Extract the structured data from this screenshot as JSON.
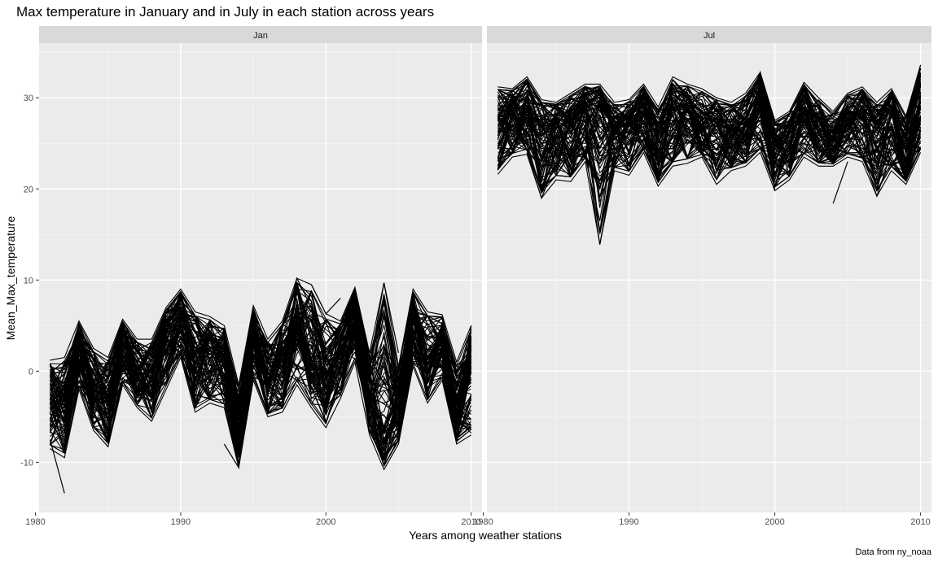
{
  "chart_data": {
    "type": "line",
    "title": "Max temperature in January and in July in each station across years",
    "xlabel": "Years among weather stations",
    "ylabel": "Mean_Max_temperature",
    "caption": "Data from ny_noaa",
    "xlim": [
      1980.25,
      2010.75
    ],
    "ylim": [
      -15.5,
      36
    ],
    "x_ticks": [
      1980,
      1990,
      2000,
      2010
    ],
    "y_ticks": [
      -10,
      0,
      10,
      20,
      30
    ],
    "grid": true,
    "legend": "none",
    "facets": [
      "Jan",
      "Jul"
    ],
    "series_count_approx": 100,
    "panels": [
      {
        "facet": "Jan",
        "x": [
          1981,
          1982,
          1983,
          1984,
          1985,
          1986,
          1987,
          1988,
          1989,
          1990,
          1991,
          1992,
          1993,
          1994,
          1995,
          1996,
          1997,
          1998,
          1999,
          2000,
          2001,
          2002,
          2003,
          2004,
          2005,
          2006,
          2007,
          2008,
          2009,
          2010
        ],
        "mean": [
          -3.5,
          -3.2,
          2.5,
          -2.0,
          -3.5,
          2.5,
          -0.5,
          -1.0,
          3.5,
          5.5,
          1.0,
          1.5,
          1.0,
          -6.5,
          3.5,
          -1.0,
          1.0,
          4.5,
          1.0,
          -1.0,
          1.5,
          6.0,
          -3.0,
          -6.0,
          -3.5,
          5.0,
          1.0,
          3.0,
          -4.5,
          0.5
        ],
        "min": [
          -8.5,
          -9.5,
          -2.0,
          -6.5,
          -8.3,
          -1.5,
          -4.0,
          -5.5,
          -2.0,
          1.5,
          -4.5,
          -3.5,
          -4.0,
          -10.6,
          -1.0,
          -5.0,
          -4.5,
          -1.5,
          -4.0,
          -6.2,
          -3.0,
          1.0,
          -7.0,
          -10.8,
          -8.0,
          0.5,
          -3.5,
          -1.0,
          -8.0,
          -7.0
        ],
        "max": [
          1.2,
          1.5,
          5.5,
          2.5,
          1.5,
          5.7,
          3.5,
          3.5,
          7.0,
          9.0,
          6.5,
          6.0,
          5.0,
          -1.5,
          7.2,
          3.5,
          5.5,
          10.2,
          9.5,
          6.3,
          5.5,
          9.2,
          2.0,
          9.7,
          0.5,
          9.0,
          6.5,
          6.2,
          1.0,
          5.0
        ],
        "highlights": [
          {
            "x": [
              1981,
              1982
            ],
            "y": [
              -7.5,
              -13.4
            ]
          },
          {
            "x": [
              1997,
              1998,
              1999,
              2000,
              2001,
              2002,
              2003
            ],
            "y": [
              3.5,
              10.2,
              7.0,
              2.0,
              4.5,
              8.5,
              1.5
            ]
          },
          {
            "x": [
              1999,
              2000,
              2001
            ],
            "y": [
              9.5,
              6.3,
              8.0
            ]
          },
          {
            "x": [
              2003,
              2004,
              2005
            ],
            "y": [
              0.5,
              9.7,
              2.0
            ]
          },
          {
            "x": [
              1993,
              1994,
              1995
            ],
            "y": [
              -8.0,
              -10.6,
              3.0
            ]
          },
          {
            "x": [
              2008,
              2009,
              2010
            ],
            "y": [
              1.0,
              -7.5,
              5.0
            ]
          },
          {
            "x": [
              2009,
              2010
            ],
            "y": [
              -5.0,
              -6.8
            ]
          }
        ]
      },
      {
        "facet": "Jul",
        "x": [
          1981,
          1982,
          1983,
          1984,
          1985,
          1986,
          1987,
          1988,
          1989,
          1990,
          1991,
          1992,
          1993,
          1994,
          1995,
          1996,
          1997,
          1998,
          1999,
          2000,
          2001,
          2002,
          2003,
          2004,
          2005,
          2006,
          2007,
          2008,
          2009,
          2010
        ],
        "mean": [
          27.5,
          28.5,
          29.0,
          26.0,
          27.0,
          27.5,
          28.5,
          29.0,
          26.5,
          27.0,
          28.5,
          25.5,
          28.5,
          29.0,
          27.0,
          27.0,
          26.0,
          27.0,
          29.5,
          25.0,
          26.0,
          28.5,
          27.0,
          25.5,
          28.0,
          28.0,
          26.5,
          28.0,
          25.0,
          29.0
        ],
        "min": [
          21.6,
          23.5,
          23.8,
          19.0,
          21.0,
          20.8,
          23.0,
          13.9,
          22.0,
          21.5,
          24.0,
          20.3,
          22.5,
          22.8,
          23.5,
          20.5,
          22.0,
          22.5,
          24.0,
          19.8,
          21.0,
          23.5,
          22.5,
          22.5,
          23.5,
          23.0,
          19.2,
          22.0,
          20.5,
          24.0
        ],
        "max": [
          31.2,
          31.0,
          32.3,
          29.8,
          29.5,
          30.5,
          31.5,
          31.5,
          29.5,
          29.8,
          31.5,
          29.0,
          32.3,
          31.5,
          31.0,
          30.0,
          29.5,
          30.5,
          32.8,
          27.5,
          28.5,
          31.7,
          30.0,
          28.5,
          30.5,
          31.2,
          29.5,
          31.0,
          28.0,
          33.6
        ],
        "highlights": [
          {
            "x": [
              1987,
              1988,
              1989
            ],
            "y": [
              24.5,
              13.9,
              23.0
            ]
          },
          {
            "x": [
              1983,
              1984,
              1985
            ],
            "y": [
              24.0,
              19.0,
              23.0
            ]
          },
          {
            "x": [
              2004,
              2005
            ],
            "y": [
              18.4,
              23.0
            ]
          },
          {
            "x": [
              2006,
              2007,
              2008
            ],
            "y": [
              24.0,
              19.2,
              24.0
            ]
          },
          {
            "x": [
              2009,
              2010
            ],
            "y": [
              28.0,
              33.6
            ]
          },
          {
            "x": [
              1998,
              1999,
              2000
            ],
            "y": [
              29.0,
              32.8,
              19.8
            ]
          }
        ]
      }
    ]
  }
}
